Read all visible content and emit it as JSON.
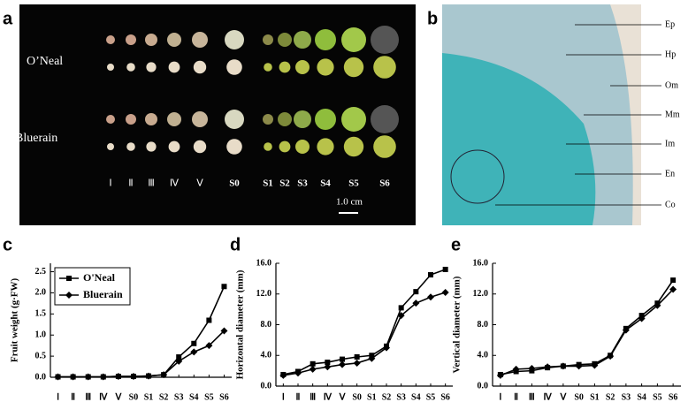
{
  "figure": {
    "panel_labels": [
      "a",
      "b",
      "c",
      "d",
      "e"
    ],
    "photo_a": {
      "cultivars": [
        "O’Neal",
        "Bluerain"
      ],
      "stages": [
        "Ⅰ",
        "Ⅱ",
        "Ⅲ",
        "Ⅳ",
        "Ⅴ",
        "S0",
        "S1",
        "S2",
        "S3",
        "S4",
        "S5",
        "S6"
      ],
      "scale_bar": "1.0 cm"
    },
    "photo_b": {
      "labels": [
        "Ep",
        "Hp",
        "Om",
        "Mm",
        "Im",
        "En",
        "Co"
      ]
    }
  },
  "chart_data": [
    {
      "type": "line",
      "ylabel": "Fruit weight (g·FW)",
      "categories": [
        "Ⅰ",
        "Ⅱ",
        "Ⅲ",
        "Ⅳ",
        "Ⅴ",
        "S0",
        "S1",
        "S2",
        "S3",
        "S4",
        "S5",
        "S6"
      ],
      "series": [
        {
          "name": "O'Neal",
          "color": "#000000",
          "marker": "square",
          "values": [
            0.01,
            0.01,
            0.01,
            0.01,
            0.02,
            0.02,
            0.03,
            0.06,
            0.48,
            0.8,
            1.35,
            2.15
          ]
        },
        {
          "name": "Bluerain",
          "color": "#000000",
          "marker": "diamond",
          "values": [
            0.01,
            0.01,
            0.01,
            0.01,
            0.02,
            0.02,
            0.03,
            0.06,
            0.38,
            0.6,
            0.75,
            1.1
          ]
        }
      ],
      "ylim": [
        0,
        2.7
      ],
      "yticks": [
        {
          "value": 0,
          "label": "0.0"
        },
        0.5,
        {
          "value": 1,
          "label": "1.0"
        },
        1.5,
        {
          "value": 2,
          "label": "2.0"
        },
        2.5
      ],
      "legend": "top-left"
    },
    {
      "type": "line",
      "ylabel": "Horizontal diameter (mm)",
      "categories": [
        "Ⅰ",
        "Ⅱ",
        "Ⅲ",
        "Ⅳ",
        "Ⅴ",
        "S0",
        "S1",
        "S2",
        "S3",
        "S4",
        "S5",
        "S6"
      ],
      "series": [
        {
          "color": "#000000",
          "marker": "square",
          "values": [
            1.5,
            1.9,
            2.9,
            3.1,
            3.5,
            3.8,
            4.0,
            5.2,
            10.2,
            12.3,
            14.5,
            15.2
          ]
        },
        {
          "color": "#000000",
          "marker": "diamond",
          "values": [
            1.4,
            1.7,
            2.2,
            2.5,
            2.8,
            3.0,
            3.6,
            5.0,
            9.2,
            10.8,
            11.6,
            12.2
          ]
        }
      ],
      "ylim": [
        0,
        16
      ],
      "yticks": [
        {
          "value": 0,
          "label": "0.0"
        },
        {
          "value": 4,
          "label": "4.0"
        },
        {
          "value": 8,
          "label": "8.0"
        },
        {
          "value": 12,
          "label": "12.0"
        },
        {
          "value": 16,
          "label": "16.0"
        }
      ]
    },
    {
      "type": "line",
      "ylabel": "Vertical diameter (mm)",
      "categories": [
        "Ⅰ",
        "Ⅱ",
        "Ⅲ",
        "Ⅳ",
        "Ⅴ",
        "S0",
        "S1",
        "S2",
        "S3",
        "S4",
        "S5",
        "S6"
      ],
      "series": [
        {
          "color": "#000000",
          "marker": "square",
          "values": [
            1.5,
            1.9,
            2.0,
            2.4,
            2.6,
            2.8,
            2.9,
            4.0,
            7.5,
            9.2,
            10.8,
            13.8
          ]
        },
        {
          "color": "#000000",
          "marker": "diamond",
          "values": [
            1.4,
            2.2,
            2.3,
            2.5,
            2.6,
            2.6,
            2.7,
            3.9,
            7.3,
            8.8,
            10.5,
            12.6
          ]
        }
      ],
      "ylim": [
        0,
        16
      ],
      "yticks": [
        {
          "value": 0,
          "label": "0.0"
        },
        {
          "value": 4,
          "label": "4.0"
        },
        {
          "value": 8,
          "label": "8.0"
        },
        {
          "value": 12,
          "label": "12.0"
        },
        {
          "value": 16,
          "label": "16.0"
        }
      ]
    }
  ]
}
